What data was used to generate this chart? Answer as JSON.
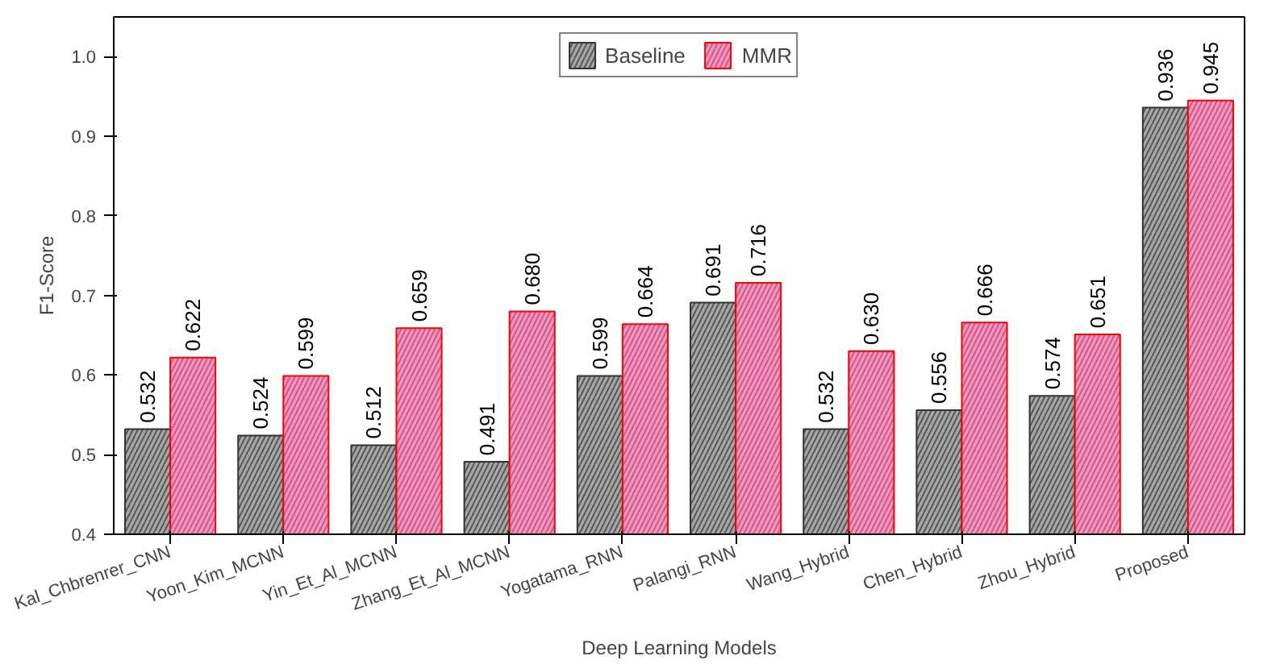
{
  "chart_data": {
    "type": "bar",
    "xlabel": "Deep Learning Models",
    "ylabel": "F1-Score",
    "categories": [
      "Kal_Chbrenrer_CNN",
      "Yoon_Kim_MCNN",
      "Yin_Et_Al_MCNN",
      "Zhang_Et_Al_MCNN",
      "Yogatama_RNN",
      "Palangi_RNN",
      "Wang_Hybrid",
      "Chen_Hybrid",
      "Zhou_Hybrid",
      "Proposed"
    ],
    "series": [
      {
        "name": "Baseline",
        "color": "#a6a6a6",
        "values": [
          0.532,
          0.524,
          0.512,
          0.491,
          0.599,
          0.691,
          0.532,
          0.556,
          0.574,
          0.936
        ],
        "value_labels": [
          "0.532",
          "0.524",
          "0.512",
          "0.491",
          "0.599",
          "0.691",
          "0.532",
          "0.556",
          "0.574",
          "0.936"
        ]
      },
      {
        "name": "MMR",
        "color": "#e89ac0",
        "values": [
          0.622,
          0.599,
          0.659,
          0.68,
          0.664,
          0.716,
          0.63,
          0.666,
          0.651,
          0.945
        ],
        "value_labels": [
          "0.622",
          "0.599",
          "0.659",
          "0.680",
          "0.664",
          "0.716",
          "0.630",
          "0.666",
          "0.651",
          "0.945"
        ]
      }
    ],
    "ylim": [
      0.4,
      1.05
    ],
    "yticks": [
      0.4,
      0.5,
      0.6,
      0.7,
      0.8,
      0.9,
      {
        "value": 1,
        "label": "1.0"
      }
    ],
    "legend": "top",
    "grid": false
  }
}
